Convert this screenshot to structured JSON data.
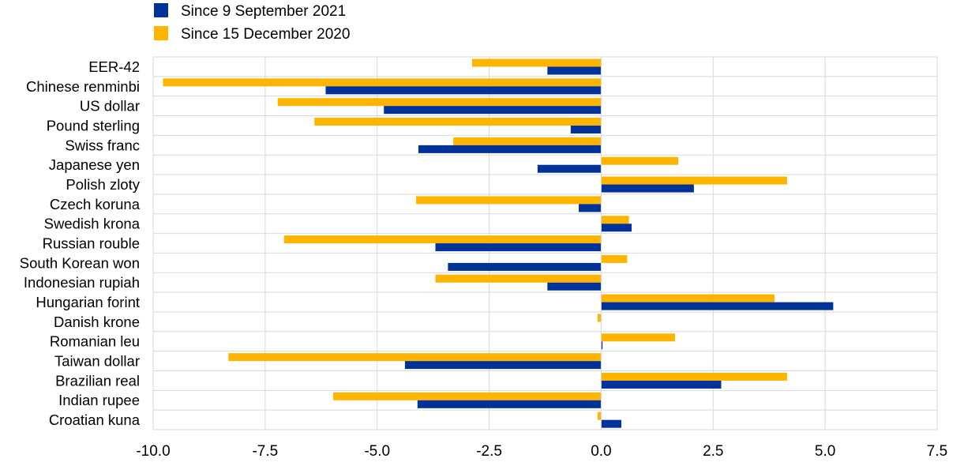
{
  "chart_data": {
    "type": "bar",
    "orientation": "horizontal",
    "categories": [
      "EER-42",
      "Chinese renminbi",
      "US dollar",
      "Pound sterling",
      "Swiss franc",
      "Japanese yen",
      "Polish zloty",
      "Czech koruna",
      "Swedish krona",
      "Russian rouble",
      "South Korean won",
      "Indonesian rupiah",
      "Hungarian forint",
      "Danish krone",
      "Romanian leu",
      "Taiwan dollar",
      "Brazilian real",
      "Indian rupee",
      "Croatian kuna"
    ],
    "series": [
      {
        "name": "Since 9 September 2021",
        "color": "#003299",
        "values": [
          -1.2,
          -6.15,
          -4.85,
          -0.68,
          -4.08,
          -1.42,
          2.07,
          -0.5,
          0.68,
          -3.7,
          -3.42,
          -1.2,
          5.18,
          0.0,
          0.03,
          -4.38,
          2.68,
          -4.1,
          0.45
        ]
      },
      {
        "name": "Since 15 December 2020",
        "color": "#FFB400",
        "values": [
          -2.88,
          -9.78,
          -7.22,
          -6.4,
          -3.3,
          1.72,
          4.15,
          -4.13,
          0.62,
          -7.08,
          0.58,
          -3.7,
          3.87,
          -0.08,
          1.65,
          -8.32,
          4.15,
          -5.98,
          -0.08
        ]
      }
    ],
    "xlim": [
      -10.0,
      7.5
    ],
    "xticks": [
      "-10.0",
      "-7.5",
      "-5.0",
      "-2.5",
      "0.0",
      "2.5",
      "5.0",
      "7.5"
    ],
    "grid": true,
    "legend_position": "top-left",
    "title": "",
    "xlabel": "",
    "ylabel": ""
  }
}
